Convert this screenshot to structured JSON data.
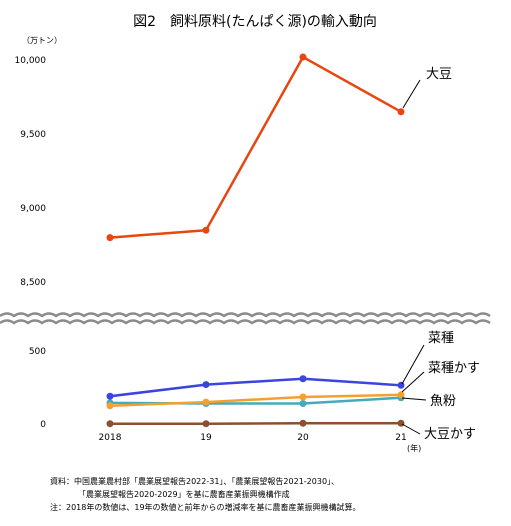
{
  "chart_data": {
    "type": "line",
    "title": "図2　飼料原料(たんぱく源)の輸入動向",
    "y_unit": "（万トン）",
    "x_unit": "(年)",
    "categories": [
      "2018",
      "19",
      "20",
      "21"
    ],
    "y_ticks_upper": [
      "10,000",
      "9,500",
      "9,000",
      "8,500"
    ],
    "y_ticks_lower": [
      "500",
      "0"
    ],
    "axis_break": true,
    "ylim_upper": [
      8500,
      10000
    ],
    "ylim_lower": [
      0,
      500
    ],
    "grid": false,
    "series": [
      {
        "name": "大豆",
        "color": "#e84610",
        "values": [
          8800,
          8850,
          10020,
          9650
        ],
        "panel": "upper"
      },
      {
        "name": "菜種",
        "color": "#3a44e0",
        "values": [
          190,
          270,
          310,
          265
        ],
        "panel": "lower"
      },
      {
        "name": "菜種かす",
        "color": "#f2a030",
        "values": [
          125,
          150,
          185,
          200
        ],
        "panel": "lower"
      },
      {
        "name": "魚粉",
        "color": "#45aabb",
        "values": [
          145,
          140,
          140,
          180
        ],
        "panel": "lower"
      },
      {
        "name": "大豆かす",
        "color": "#8b5030",
        "values": [
          2,
          2,
          5,
          5
        ],
        "panel": "lower"
      }
    ]
  },
  "notes": {
    "source_line1": "資料：中国農業農村部「農業展望報告2022-31」、「農業展望報告2021-2030」、",
    "source_line2": "「農業展望報告2020-2029」を基に農畜産業振興機構作成",
    "note_line": "注：2018年の数値は、19年の数値と前年からの増減率を基に農畜産業振興機構試算。"
  }
}
